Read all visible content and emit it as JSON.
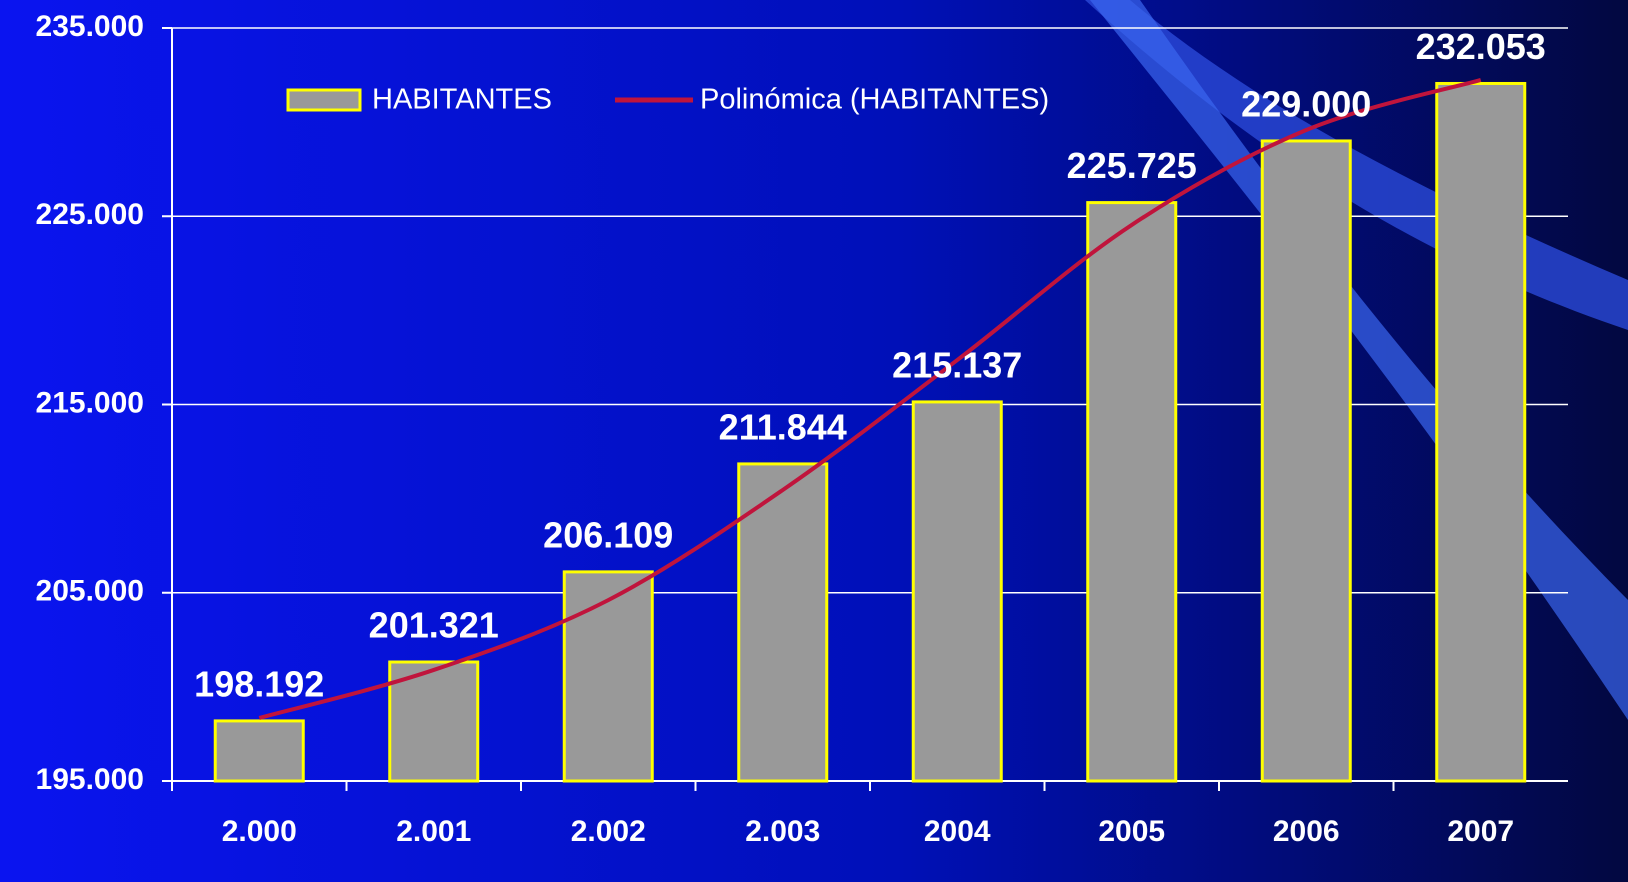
{
  "chart_data": {
    "type": "bar",
    "categories": [
      "2.000",
      "2.001",
      "2.002",
      "2.003",
      "2004",
      "2005",
      "2006",
      "2007"
    ],
    "series": [
      {
        "name": "HABITANTES",
        "color": "#999999",
        "edge_color": "#ffff00",
        "values": [
          198192,
          201321,
          206109,
          211844,
          215137,
          225725,
          229000,
          232053
        ],
        "value_labels": [
          "198.192",
          "201.321",
          "206.109",
          "211.844",
          "215.137",
          "225.725",
          "229.000",
          "232.053"
        ]
      },
      {
        "name": "Polinómica (HABITANTES)",
        "type": "line",
        "color": "#c0143c",
        "values": [
          198350,
          200900,
          204610,
          210460,
          217360,
          224540,
          229580,
          232240
        ]
      }
    ],
    "ylim": [
      195000,
      235000
    ],
    "yticks": [
      {
        "value": 195000,
        "label": "195.000"
      },
      {
        "value": 205000,
        "label": "205.000"
      },
      {
        "value": 215000,
        "label": "215.000"
      },
      {
        "value": 225000,
        "label": "225.000"
      },
      {
        "value": 235000,
        "label": "235.000"
      }
    ],
    "grid": true
  }
}
